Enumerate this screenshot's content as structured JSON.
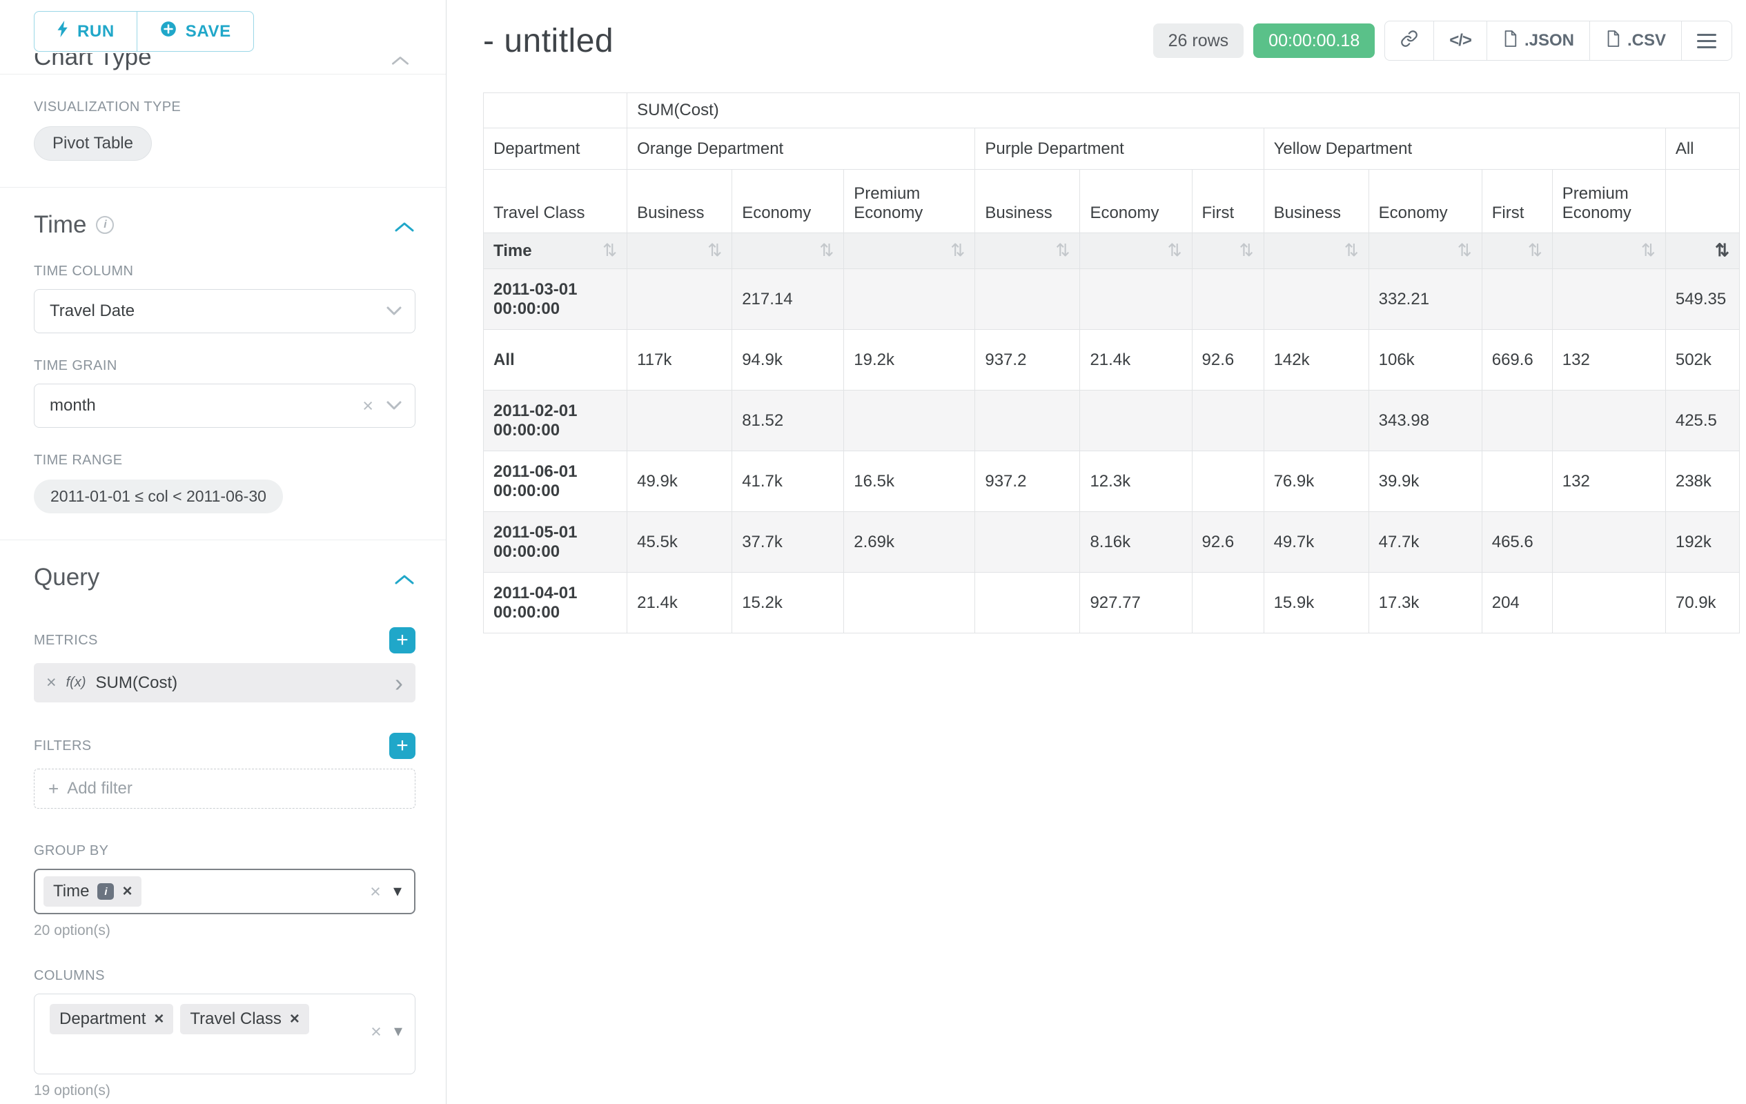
{
  "colors": {
    "accent": "#20a7c9",
    "success": "#5ac189"
  },
  "sidebar": {
    "run_button": "RUN",
    "save_button": "SAVE",
    "chart_type_heading": "Chart Type",
    "visualization_type_label": "VISUALIZATION TYPE",
    "visualization_type_value": "Pivot Table",
    "time": {
      "title": "Time",
      "time_column_label": "TIME COLUMN",
      "time_column_value": "Travel Date",
      "time_grain_label": "TIME GRAIN",
      "time_grain_value": "month",
      "time_range_label": "TIME RANGE",
      "time_range_value": "2011-01-01 ≤ col < 2011-06-30"
    },
    "query": {
      "title": "Query",
      "metrics_label": "METRICS",
      "metric_fx": "f(x)",
      "metric_name": "SUM(Cost)",
      "filters_label": "FILTERS",
      "add_filter_placeholder": "Add filter",
      "group_by_label": "GROUP BY",
      "group_by_values": [
        "Time"
      ],
      "group_by_hint": "20 option(s)",
      "columns_label": "COLUMNS",
      "columns_values": [
        "Department",
        "Travel Class"
      ],
      "columns_hint": "19 option(s)"
    }
  },
  "header": {
    "title": "- untitled",
    "rows_badge": "26 rows",
    "timer": "00:00:00.18",
    "code_icon_text": "</>",
    "json_button": ".JSON",
    "csv_button": ".CSV"
  },
  "chart_data": {
    "type": "table",
    "metric_label": "SUM(Cost)",
    "row_dimension_label": "Department",
    "row_subdimension_label": "Travel Class",
    "time_label": "Time",
    "column_groups": [
      {
        "label": "Orange Department",
        "span": 3
      },
      {
        "label": "Purple Department",
        "span": 3
      },
      {
        "label": "Yellow Department",
        "span": 4
      },
      {
        "label": "All",
        "span": 1
      }
    ],
    "leaf_columns": [
      "Business",
      "Economy",
      "Premium Economy",
      "Business",
      "Economy",
      "First",
      "Business",
      "Economy",
      "First",
      "Premium Economy",
      ""
    ],
    "sorted_column_index": 10,
    "rows": [
      {
        "label": "2011-03-01 00:00:00",
        "cells": [
          "",
          "217.14",
          "",
          "",
          "",
          "",
          "",
          "332.21",
          "",
          "",
          "549.35"
        ]
      },
      {
        "label": "All",
        "cells": [
          "117k",
          "94.9k",
          "19.2k",
          "937.2",
          "21.4k",
          "92.6",
          "142k",
          "106k",
          "669.6",
          "132",
          "502k"
        ]
      },
      {
        "label": "2011-02-01 00:00:00",
        "cells": [
          "",
          "81.52",
          "",
          "",
          "",
          "",
          "",
          "343.98",
          "",
          "",
          "425.5"
        ]
      },
      {
        "label": "2011-06-01 00:00:00",
        "cells": [
          "49.9k",
          "41.7k",
          "16.5k",
          "937.2",
          "12.3k",
          "",
          "76.9k",
          "39.9k",
          "",
          "132",
          "238k"
        ]
      },
      {
        "label": "2011-05-01 00:00:00",
        "cells": [
          "45.5k",
          "37.7k",
          "2.69k",
          "",
          "8.16k",
          "92.6",
          "49.7k",
          "47.7k",
          "465.6",
          "",
          "192k"
        ]
      },
      {
        "label": "2011-04-01 00:00:00",
        "cells": [
          "21.4k",
          "15.2k",
          "",
          "",
          "927.77",
          "",
          "15.9k",
          "17.3k",
          "204",
          "",
          "70.9k"
        ]
      }
    ]
  }
}
